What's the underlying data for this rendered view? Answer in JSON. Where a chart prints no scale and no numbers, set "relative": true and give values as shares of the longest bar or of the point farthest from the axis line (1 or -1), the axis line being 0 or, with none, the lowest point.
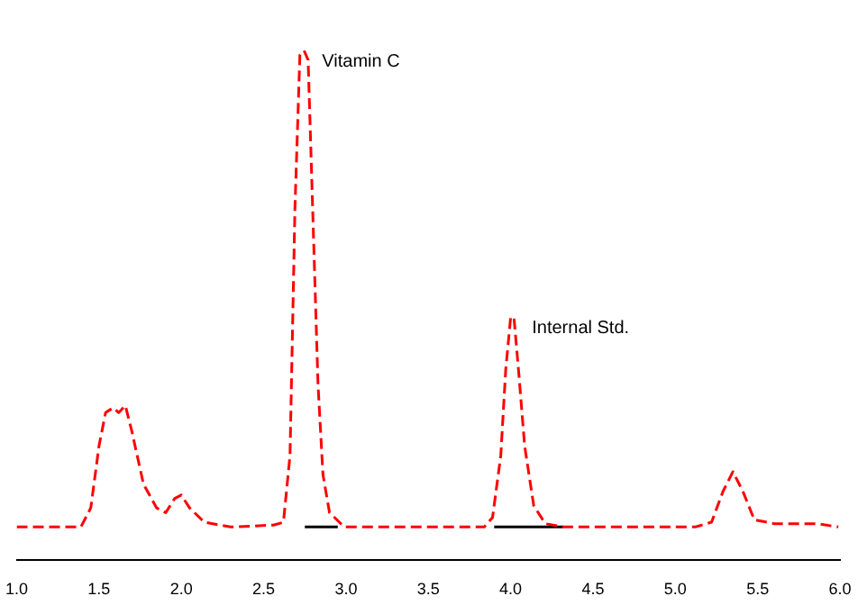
{
  "chart_data": {
    "type": "line",
    "relative": true,
    "grid": false,
    "legend": false,
    "marker": "none",
    "line_style": "dashed",
    "xlim": [
      1.0,
      6.0
    ],
    "xticks": [
      {
        "value": 1.0,
        "label": "1.0"
      },
      1.5,
      {
        "value": 2.0,
        "label": "2.0"
      },
      2.5,
      {
        "value": 3.0,
        "label": "3.0"
      },
      3.5,
      {
        "value": 4.0,
        "label": "4.0"
      },
      4.5,
      {
        "value": 5.0,
        "label": "5.0"
      },
      5.5,
      {
        "value": 6.0,
        "label": "6.0"
      }
    ],
    "series": [
      {
        "color": "#ff0000",
        "x": [
          1.0,
          1.39,
          1.45,
          1.5,
          1.54,
          1.585,
          1.62,
          1.66,
          1.7,
          1.77,
          1.85,
          1.905,
          1.96,
          2.0,
          2.05,
          2.14,
          2.3,
          2.56,
          2.62,
          2.66,
          2.69,
          2.72,
          2.745,
          2.77,
          2.8,
          2.83,
          2.86,
          2.9,
          2.99,
          3.52,
          3.84,
          3.89,
          3.94,
          3.97,
          4.0,
          4.02,
          4.05,
          4.085,
          4.14,
          4.21,
          4.32,
          5.12,
          5.22,
          5.29,
          5.35,
          5.41,
          5.48,
          5.6,
          5.86,
          5.99
        ],
        "values": [
          0,
          0,
          0.04,
          0.17,
          0.24,
          0.25,
          0.24,
          0.255,
          0.2,
          0.09,
          0.04,
          0.03,
          0.06,
          0.067,
          0.04,
          0.01,
          0,
          0.004,
          0.01,
          0.15,
          0.67,
          0.99,
          1.0,
          0.98,
          0.64,
          0.3,
          0.11,
          0.03,
          0,
          0,
          0,
          0.02,
          0.15,
          0.33,
          0.44,
          0.44,
          0.32,
          0.17,
          0.045,
          0.007,
          0,
          0,
          0.01,
          0.075,
          0.116,
          0.075,
          0.015,
          0.007,
          0.007,
          0
        ]
      },
      {
        "type": "line",
        "line_style": "solid",
        "color": "#000000",
        "x": [
          2.75,
          2.95
        ],
        "values": [
          0,
          0
        ]
      },
      {
        "type": "line",
        "line_style": "solid",
        "color": "#000000",
        "x": [
          3.9,
          4.32
        ],
        "values": [
          0,
          0
        ]
      }
    ],
    "annotations": [
      {
        "text": "Vitamin C",
        "x": 2.745,
        "y": 1.0
      },
      {
        "text": "Internal Std.",
        "x": 4.02,
        "y": 0.44
      }
    ]
  }
}
